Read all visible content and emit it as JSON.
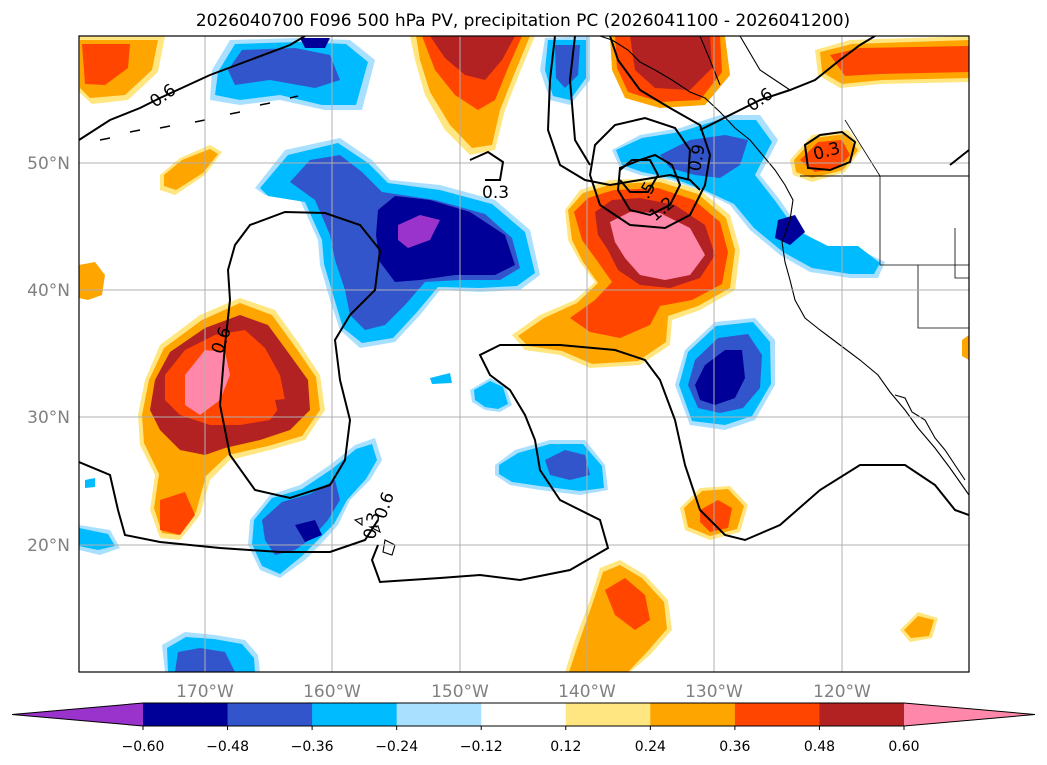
{
  "title": "2026040700 F096 500 hPa PV, precipitation PC (2026041100 - 2026041200)",
  "map": {
    "lon_labels": [
      "170°W",
      "160°W",
      "150°W",
      "140°W",
      "130°W",
      "120°W"
    ],
    "lat_labels": [
      "50°N",
      "40°N",
      "30°N",
      "20°N"
    ],
    "contour_labels": [
      "0.6",
      "0.3",
      "0.6",
      "0.6",
      ".5",
      "1.2",
      "0.9",
      "0.6",
      "0.3",
      "0.3"
    ]
  },
  "colorbar": {
    "tick_labels": [
      "−0.60",
      "−0.48",
      "−0.36",
      "−0.24",
      "−0.12",
      "0.12",
      "0.24",
      "0.36",
      "0.48",
      "0.60"
    ],
    "colors": [
      "#9933cc",
      "#000099",
      "#3355cc",
      "#00bbff",
      "#aae0ff",
      "#ffffff",
      "#ffe680",
      "#ffa500",
      "#ff4500",
      "#b22222",
      "#ff88aa"
    ]
  },
  "colors": {
    "purple": "#9933cc",
    "navy": "#000099",
    "blue": "#3355cc",
    "cyan": "#00bbff",
    "lightblue": "#aae0ff",
    "yellow": "#ffe680",
    "orange": "#ffa500",
    "redorange": "#ff4500",
    "darkred": "#b22222",
    "pink": "#ff88aa",
    "grid": "#b0b0b0",
    "label": "#808080"
  }
}
